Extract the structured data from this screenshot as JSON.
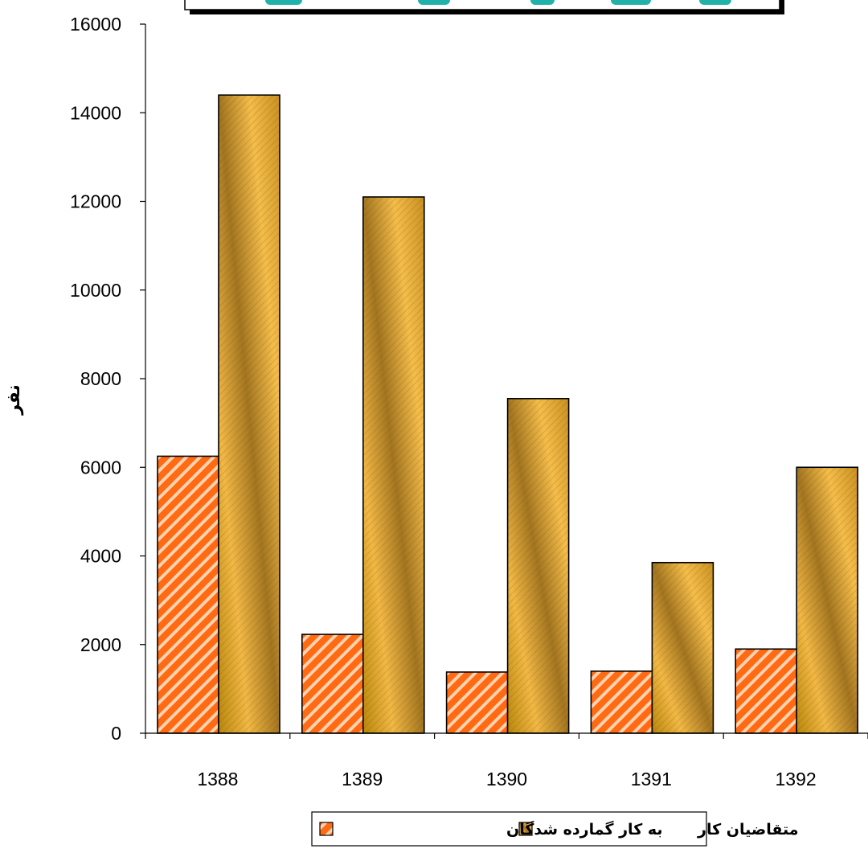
{
  "chart_data": {
    "type": "bar",
    "title": "",
    "xlabel": "",
    "ylabel": "نفر",
    "categories": [
      "1388",
      "1389",
      "1390",
      "1391",
      "1392"
    ],
    "ylim": [
      0,
      16000
    ],
    "yticks": [
      0,
      2000,
      4000,
      6000,
      8000,
      10000,
      12000,
      14000,
      16000
    ],
    "grid": false,
    "legend_position": "bottom",
    "series": [
      {
        "name": "به کار گمارده شدگان",
        "values": [
          6250,
          2230,
          1380,
          1400,
          1900
        ],
        "color": "#ff6a13",
        "pattern": "diagonal-stripes"
      },
      {
        "name": "متقاضیان کار",
        "values": [
          14400,
          12100,
          7550,
          3850,
          6000
        ],
        "color": "#daa520",
        "pattern": "gradient"
      }
    ]
  }
}
